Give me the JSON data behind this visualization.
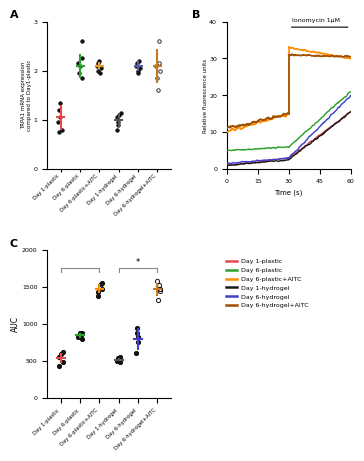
{
  "panel_A": {
    "title": "A",
    "ylabel": "TRPA1 mRNA expression\ncompared to Day1-plastic",
    "ylim": [
      0,
      3
    ],
    "yticks": [
      0,
      1,
      2,
      3
    ],
    "categories": [
      "Day 1-plastic",
      "Day 6-plastic",
      "Day 6-plastic+AITC",
      "Day 1-hydrogel",
      "Day 6-hydrogel",
      "Day 6-hydrogel+AITC"
    ],
    "colors": [
      "#e8474c",
      "#2ca02c",
      "#e8a020",
      "#555555",
      "#5b5ea6",
      "#c87820"
    ],
    "data": [
      [
        1.05,
        0.8,
        0.95,
        1.35,
        1.2,
        0.75
      ],
      [
        2.25,
        1.85,
        2.6,
        2.1,
        1.95,
        2.15
      ],
      [
        2.05,
        2.15,
        2.1,
        2.2,
        2.0,
        1.95
      ],
      [
        1.05,
        1.1,
        0.9,
        1.15,
        0.8,
        0.95
      ],
      [
        2.05,
        2.15,
        2.1,
        2.2,
        2.0,
        1.95
      ],
      [
        2.6,
        1.6,
        2.0,
        2.1,
        2.15,
        1.85
      ]
    ],
    "means": [
      1.05,
      2.1,
      2.1,
      1.0,
      2.1,
      2.1
    ],
    "errors": [
      0.25,
      0.25,
      0.07,
      0.15,
      0.1,
      0.35
    ],
    "open_markers": [
      false,
      false,
      false,
      false,
      false,
      true
    ]
  },
  "panel_B": {
    "title": "B",
    "annotation": "Ionomycin 1μM",
    "xlabel": "Time (s)",
    "ylabel": "Relative fluorescence units",
    "xlim": [
      0,
      60
    ],
    "ylim": [
      0,
      40
    ],
    "yticks": [
      0,
      10,
      20,
      30,
      40
    ],
    "xticks": [
      0,
      15,
      30,
      45,
      60
    ],
    "lines": [
      {
        "name": "Day 1-plastic",
        "color": "#e8474c",
        "pre_y0": 1.0,
        "pre_y1": 3.0,
        "post_y0": 3.0,
        "post_y1": 15.5,
        "noisy_pre": false,
        "lw": 1.0
      },
      {
        "name": "Day 6-plastic",
        "color": "#2ca02c",
        "pre_y0": 5.0,
        "pre_y1": 6.0,
        "post_y0": 6.0,
        "post_y1": 21.0,
        "noisy_pre": false,
        "lw": 1.0
      },
      {
        "name": "Day 6-plastic+AITC",
        "color": "#ff8c00",
        "pre_y0": 10.0,
        "pre_y1": 15.0,
        "post_y0": 33.0,
        "post_y1": 30.0,
        "noisy_pre": true,
        "lw": 1.2
      },
      {
        "name": "Day 1-hydrogel",
        "color": "#1a1a1a",
        "pre_y0": 1.0,
        "pre_y1": 2.5,
        "post_y0": 2.5,
        "post_y1": 15.5,
        "noisy_pre": false,
        "lw": 1.0
      },
      {
        "name": "Day 6-hydrogel",
        "color": "#4040cc",
        "pre_y0": 1.5,
        "pre_y1": 3.0,
        "post_y0": 3.0,
        "post_y1": 20.0,
        "noisy_pre": false,
        "lw": 1.0
      },
      {
        "name": "Day 6-hydrogel+AITC",
        "color": "#a05000",
        "pre_y0": 11.0,
        "pre_y1": 15.0,
        "post_y0": 31.0,
        "post_y1": 30.5,
        "noisy_pre": true,
        "lw": 1.2
      }
    ]
  },
  "panel_C": {
    "title": "C",
    "ylabel": "AUC",
    "ylim": [
      0,
      2000
    ],
    "yticks": [
      0,
      500,
      1000,
      1500,
      2000
    ],
    "categories": [
      "Day 1-plastic",
      "Day 6-plastic",
      "Day 6-plastic+AITC",
      "Day 1-hydrogel",
      "Day 6-hydrogel",
      "Day 6-hydrogel+AITC"
    ],
    "colors": [
      "#e8474c",
      "#2ca02c",
      "#ff8c00",
      "#555555",
      "#4040cc",
      "#c87820"
    ],
    "data": [
      [
        550,
        480,
        430,
        620,
        590
      ],
      [
        850,
        880,
        800,
        820,
        870
      ],
      [
        1430,
        1480,
        1540,
        1560,
        1380
      ],
      [
        545,
        500,
        480,
        540,
        510
      ],
      [
        600,
        870,
        750,
        950,
        820
      ],
      [
        1450,
        1530,
        1320,
        1480,
        1580
      ]
    ],
    "means": [
      535,
      845,
      1480,
      515,
      800,
      1470
    ],
    "errors": [
      65,
      30,
      60,
      20,
      150,
      90
    ],
    "open_markers": [
      false,
      false,
      false,
      false,
      false,
      true
    ],
    "sig_bars": [
      {
        "x1": 0,
        "x2": 2,
        "y": 1760,
        "star": ""
      },
      {
        "x1": 3,
        "x2": 5,
        "y": 1760,
        "star": "*"
      }
    ]
  },
  "legend": {
    "entries": [
      {
        "label": "Day 1-plastic",
        "color": "#e8474c"
      },
      {
        "label": "Day 6-plastic",
        "color": "#2ca02c"
      },
      {
        "label": "Day 6-plastic+AITC",
        "color": "#ff8c00"
      },
      {
        "label": "Day 1-hydrogel",
        "color": "#1a1a1a"
      },
      {
        "label": "Day 6-hydrogel",
        "color": "#4040cc"
      },
      {
        "label": "Day 6-hydrogel+AITC",
        "color": "#a05000"
      }
    ]
  }
}
